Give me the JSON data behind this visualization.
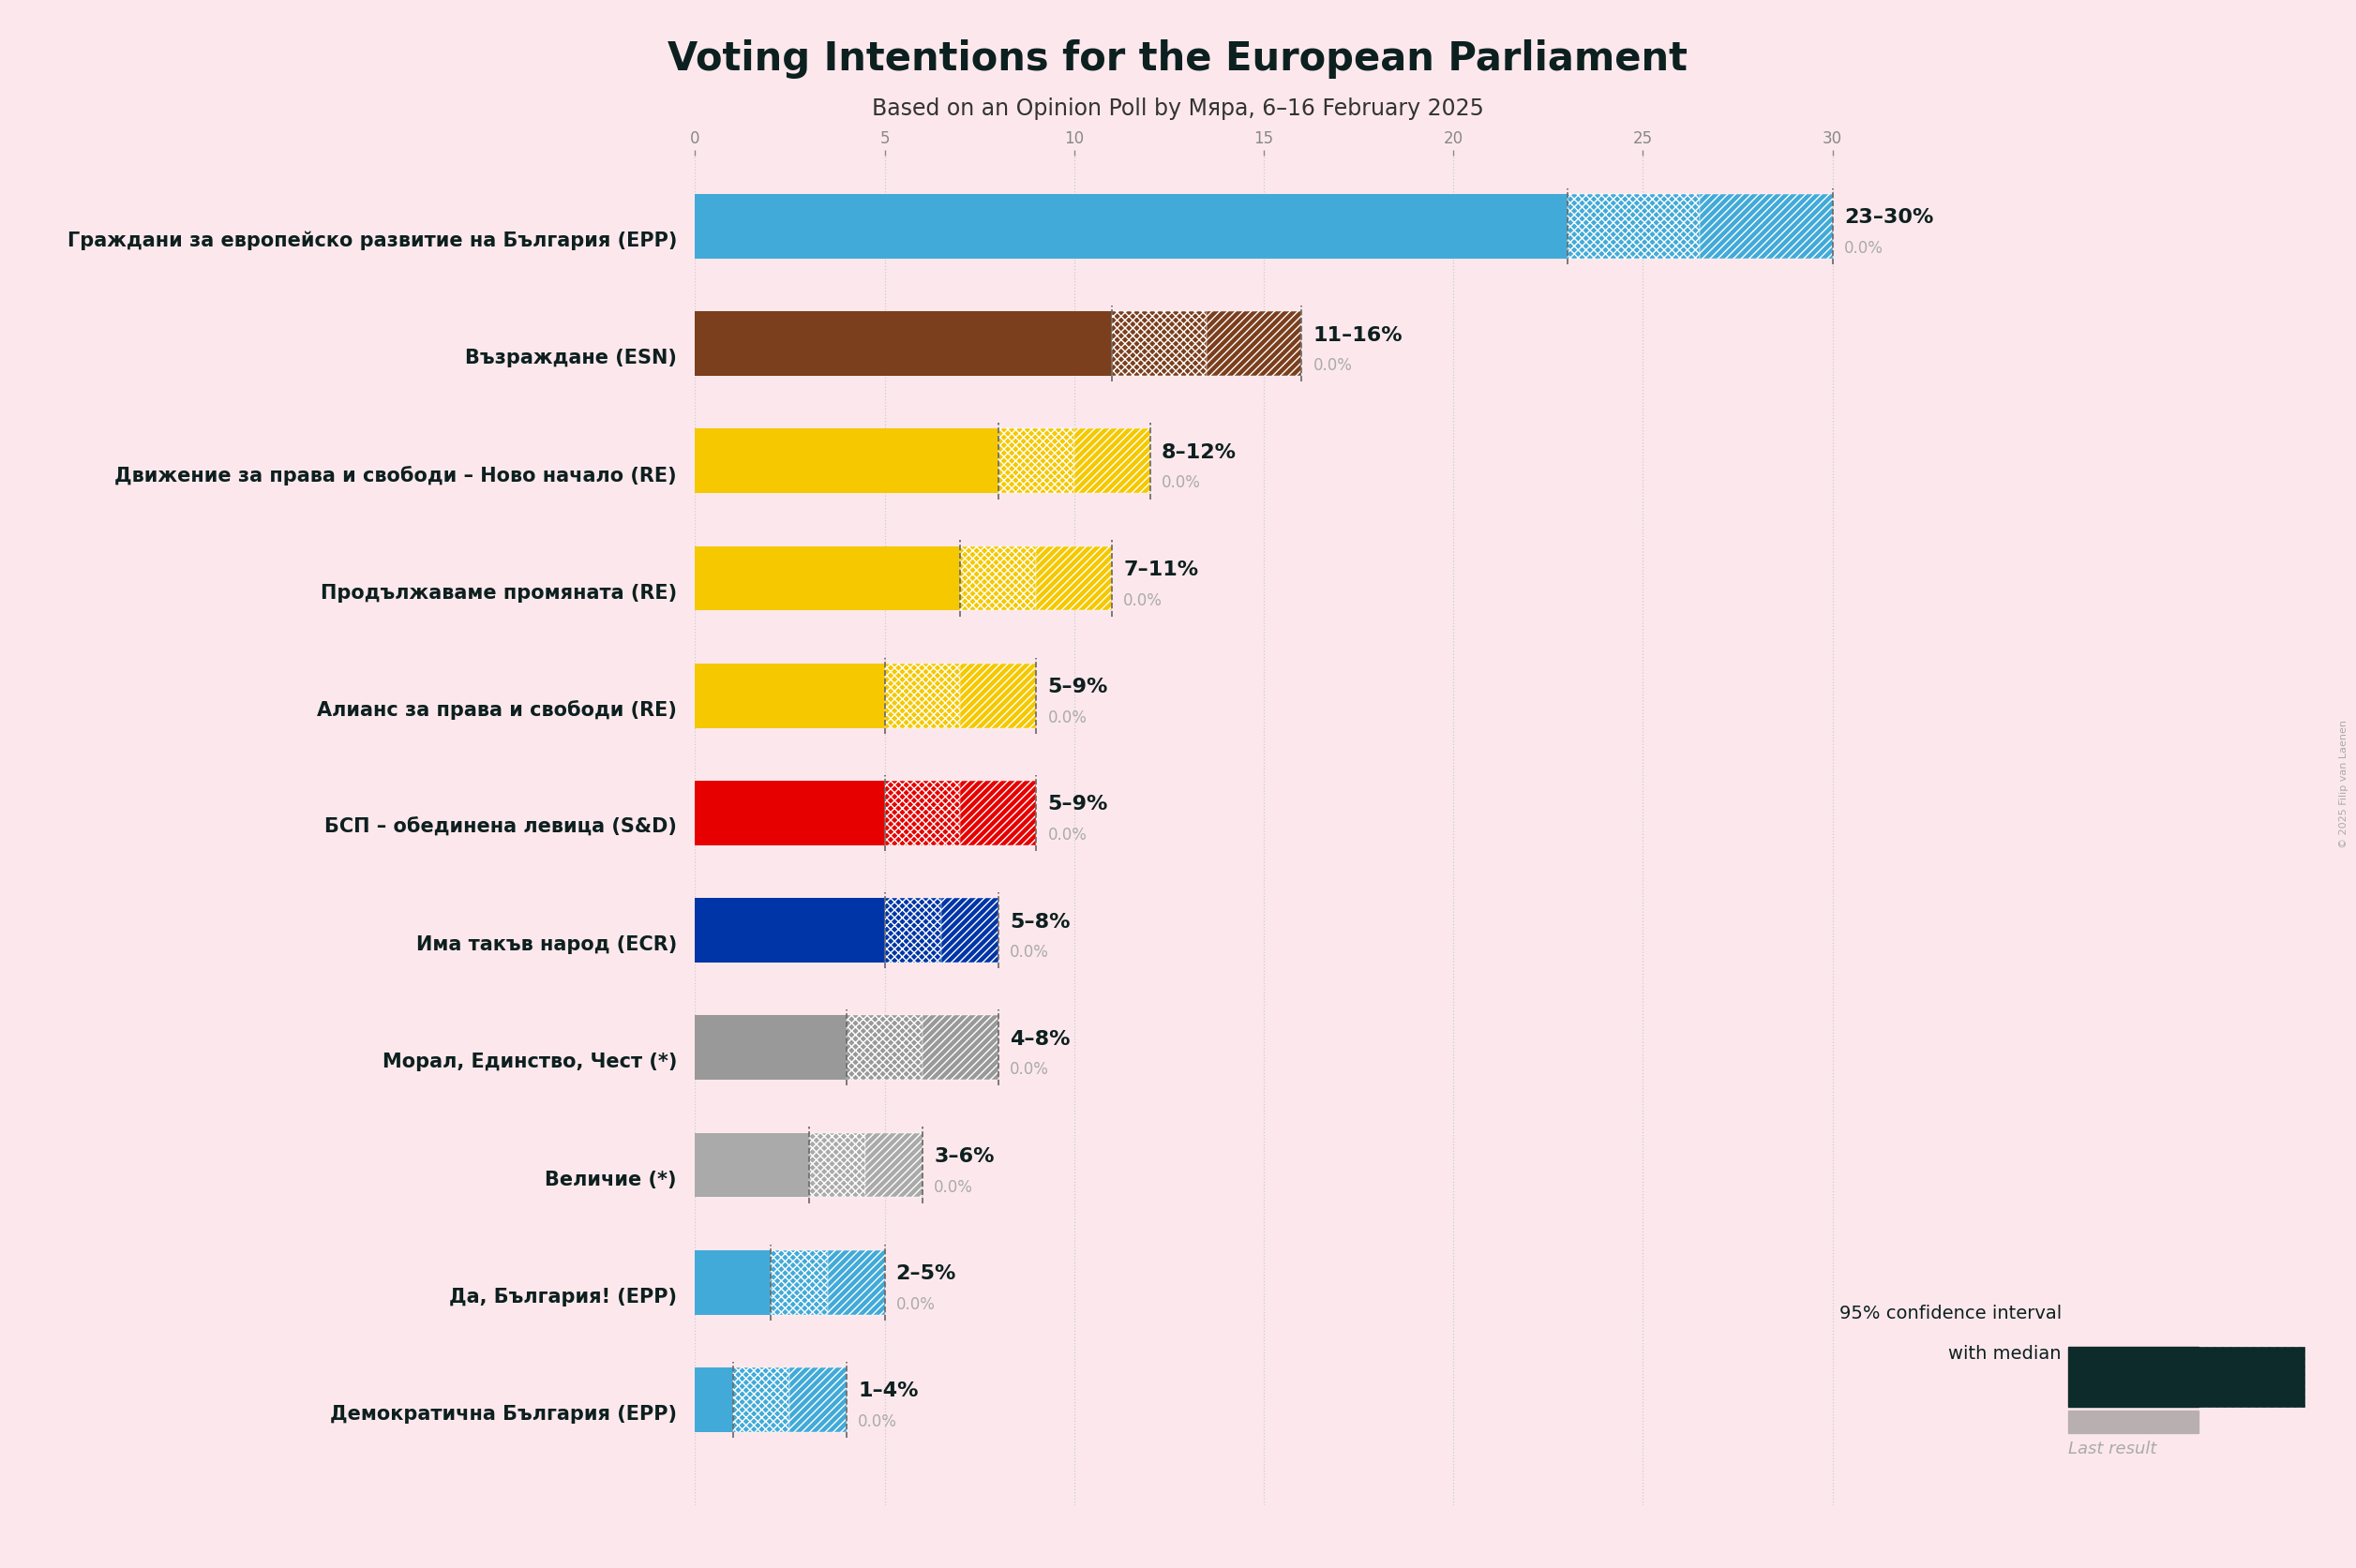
{
  "title": "Voting Intentions for the European Parliament",
  "subtitle": "Based on an Opinion Poll by Мяра, 6–16 February 2025",
  "bg_color": "#fce8ec",
  "parties": [
    {
      "name": "Граждани за европейско развитие на България (EPP)",
      "low": 23,
      "high": 30,
      "median": 26.5,
      "last": 0.0,
      "color": "#42aad8",
      "label": "23–30%"
    },
    {
      "name": "Възраждане (ESN)",
      "low": 11,
      "high": 16,
      "median": 13.5,
      "last": 0.0,
      "color": "#7b3f1e",
      "label": "11–16%"
    },
    {
      "name": "Движение за права и свободи – Ново начало (RE)",
      "low": 8,
      "high": 12,
      "median": 10.0,
      "last": 0.0,
      "color": "#f5c800",
      "label": "8–12%"
    },
    {
      "name": "Продължаваме промяната (RE)",
      "low": 7,
      "high": 11,
      "median": 9.0,
      "last": 0.0,
      "color": "#f5c800",
      "label": "7–11%"
    },
    {
      "name": "Алианс за права и свободи (RE)",
      "low": 5,
      "high": 9,
      "median": 7.0,
      "last": 0.0,
      "color": "#f5c800",
      "label": "5–9%"
    },
    {
      "name": "БСП – обединена левица (S&D)",
      "low": 5,
      "high": 9,
      "median": 7.0,
      "last": 0.0,
      "color": "#e60000",
      "label": "5–9%"
    },
    {
      "name": "Има такъв народ (ECR)",
      "low": 5,
      "high": 8,
      "median": 6.5,
      "last": 0.0,
      "color": "#0035a7",
      "label": "5–8%"
    },
    {
      "name": "Морал, Единство, Чест (*)",
      "low": 4,
      "high": 8,
      "median": 6.0,
      "last": 0.0,
      "color": "#999999",
      "label": "4–8%"
    },
    {
      "name": "Величие (*)",
      "low": 3,
      "high": 6,
      "median": 4.5,
      "last": 0.0,
      "color": "#aaaaaa",
      "label": "3–6%"
    },
    {
      "name": "Да, България! (EPP)",
      "low": 2,
      "high": 5,
      "median": 3.5,
      "last": 0.0,
      "color": "#42aad8",
      "label": "2–5%"
    },
    {
      "name": "Демократична България (EPP)",
      "low": 1,
      "high": 4,
      "median": 2.5,
      "last": 0.0,
      "color": "#42aad8",
      "label": "1–4%"
    }
  ],
  "xlim": [
    0,
    32
  ],
  "xtick_step": 5,
  "bar_height": 0.55,
  "last_bar_height": 0.18,
  "legend_text1": "95% confidence interval",
  "legend_text2": "with median",
  "legend_text3": "Last result",
  "copyright": "© 2025 Filip van Laenen",
  "dark_legend_color": "#0d2b2b",
  "last_bar_color": "#b8b0b0",
  "label_color": "#0d1f1f",
  "sublabel_color": "#aaaaaa",
  "grid_color": "#cccccc",
  "title_color": "#0d2020"
}
